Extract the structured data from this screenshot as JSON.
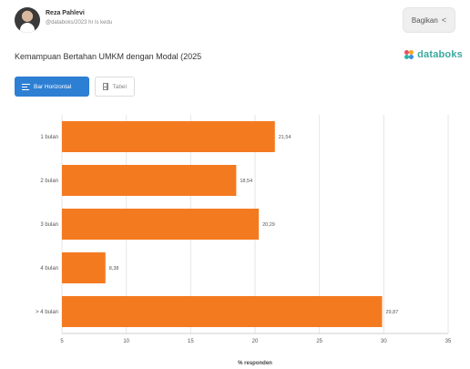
{
  "header": {
    "author": "Reza Pahlevi",
    "date": "@databoks/2023 hr ls kedu",
    "share_label": "Bagikan"
  },
  "brand": {
    "name": "databoks"
  },
  "tabs": [
    {
      "label": "Bar Horizontal",
      "icon": "bar-chart-icon",
      "active": true
    },
    {
      "label": "Tabel",
      "icon": "table-icon",
      "active": false
    }
  ],
  "colors": {
    "bar": "#f47a20",
    "tab_active": "#2d7fd3",
    "brand": "#3aa9a0"
  },
  "chart_data": {
    "type": "bar",
    "orientation": "horizontal",
    "title": "Kemampuan Bertahan UMKM dengan Modal (2025",
    "categories": [
      "1 bulan",
      "2 bulan",
      "3 bulan",
      "4 bulan",
      "> 4 bulan"
    ],
    "values": [
      21.54,
      18.54,
      20.29,
      8.38,
      29.87
    ],
    "value_labels": [
      "21,54",
      "18,54",
      "20,29",
      "8,38",
      "29,87"
    ],
    "xlabel": "% responden",
    "xlim": [
      5,
      35
    ],
    "xticks": [
      5,
      10,
      15,
      20,
      25,
      30,
      35
    ],
    "grid": true,
    "legend": "none"
  }
}
